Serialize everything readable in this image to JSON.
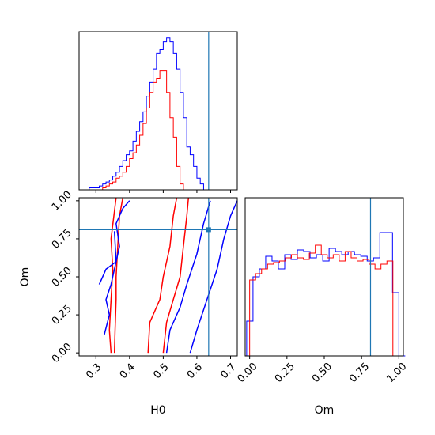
{
  "chart_data": {
    "type": "corner",
    "parameters": [
      "H0",
      "Om"
    ],
    "truth": {
      "H0": 0.635,
      "Om": 0.81
    },
    "colors": {
      "series_a": "#0000ff",
      "series_b": "#ff0000",
      "truth": "#1f77b4"
    },
    "panels": [
      {
        "id": "h0-marginal",
        "type": "histogram",
        "xlim": [
          0.25,
          0.72
        ],
        "xticks": [
          0.3,
          0.4,
          0.5,
          0.6,
          0.7
        ],
        "show_tick_labels": false,
        "series": [
          {
            "color": "#0000ff",
            "bin_edges_start": 0.28,
            "bin_width": 0.01,
            "heights": [
              1,
              1,
              1,
              2,
              3,
              4,
              5,
              7,
              9,
              12,
              15,
              18,
              20,
              25,
              30,
              35,
              40,
              48,
              55,
              62,
              70,
              72,
              76,
              78,
              76,
              70,
              62,
              50,
              37,
              22,
              18,
              12,
              6,
              3,
              0
            ]
          },
          {
            "color": "#ff0000",
            "bin_edges_start": 0.32,
            "bin_width": 0.01,
            "heights": [
              1,
              2,
              3,
              4,
              6,
              7,
              9,
              12,
              16,
              19,
              23,
              28,
              34,
              42,
              50,
              55,
              57,
              61,
              61,
              50,
              37,
              27,
              12,
              3,
              0
            ]
          }
        ]
      },
      {
        "id": "h0-om-contour",
        "type": "contour",
        "xlim": [
          0.25,
          0.72
        ],
        "ylim": [
          -0.02,
          1.02
        ],
        "xticks": [
          0.3,
          0.4,
          0.5,
          0.6,
          0.7
        ],
        "xtick_labels": [
          "0.3",
          "0.4",
          "0.5",
          "0.6",
          "0.7"
        ],
        "yticks": [
          0.0,
          0.25,
          0.5,
          0.75,
          1.0
        ],
        "ytick_labels": [
          "0.00",
          "0.25",
          "0.50",
          "0.75",
          "1.00"
        ],
        "xlabel": "H0",
        "ylabel": "Om",
        "series": [
          {
            "color": "#ff0000",
            "contours": [
              [
                [
                  0.355,
                  0.0
                ],
                [
                  0.357,
                  0.15
                ],
                [
                  0.36,
                  0.35
                ],
                [
                  0.36,
                  0.5
                ],
                [
                  0.365,
                  0.7
                ],
                [
                  0.37,
                  0.9
                ],
                [
                  0.38,
                  1.02
                ]
              ],
              [
                [
                  0.455,
                  0.0
                ],
                [
                  0.46,
                  0.2
                ],
                [
                  0.49,
                  0.35
                ],
                [
                  0.5,
                  0.5
                ],
                [
                  0.52,
                  0.7
                ],
                [
                  0.53,
                  0.9
                ],
                [
                  0.54,
                  1.02
                ]
              ],
              [
                [
                  0.345,
                  0.0
                ],
                [
                  0.34,
                  0.15
                ],
                [
                  0.345,
                  0.35
                ],
                [
                  0.35,
                  0.55
                ],
                [
                  0.345,
                  0.75
                ],
                [
                  0.36,
                  1.02
                ]
              ],
              [
                [
                  0.5,
                  0.0
                ],
                [
                  0.51,
                  0.2
                ],
                [
                  0.53,
                  0.35
                ],
                [
                  0.55,
                  0.5
                ],
                [
                  0.56,
                  0.7
                ],
                [
                  0.57,
                  0.9
                ],
                [
                  0.575,
                  1.02
                ]
              ]
            ]
          },
          {
            "color": "#0000ff",
            "contours": [
              [
                [
                  0.31,
                  0.45
                ],
                [
                  0.33,
                  0.55
                ],
                [
                  0.36,
                  0.6
                ],
                [
                  0.37,
                  0.7
                ],
                [
                  0.36,
                  0.85
                ],
                [
                  0.38,
                  0.95
                ],
                [
                  0.4,
                  1.0
                ]
              ],
              [
                [
                  0.325,
                  0.12
                ],
                [
                  0.34,
                  0.25
                ],
                [
                  0.33,
                  0.35
                ],
                [
                  0.345,
                  0.45
                ],
                [
                  0.36,
                  0.6
                ],
                [
                  0.355,
                  0.8
                ]
              ],
              [
                [
                  0.51,
                  0.0
                ],
                [
                  0.52,
                  0.15
                ],
                [
                  0.55,
                  0.3
                ],
                [
                  0.57,
                  0.45
                ],
                [
                  0.6,
                  0.65
                ],
                [
                  0.62,
                  0.85
                ],
                [
                  0.64,
                  1.0
                ]
              ],
              [
                [
                  0.58,
                  0.0
                ],
                [
                  0.6,
                  0.15
                ],
                [
                  0.63,
                  0.35
                ],
                [
                  0.66,
                  0.55
                ],
                [
                  0.68,
                  0.75
                ],
                [
                  0.7,
                  0.9
                ],
                [
                  0.72,
                  1.0
                ]
              ]
            ]
          }
        ]
      },
      {
        "id": "om-marginal",
        "type": "histogram",
        "xlim": [
          -0.03,
          1.03
        ],
        "xticks": [
          0.0,
          0.25,
          0.5,
          0.75,
          1.0
        ],
        "xtick_labels": [
          "0.00",
          "0.25",
          "0.50",
          "0.75",
          "1.00"
        ],
        "xlabel": "Om",
        "ymax": 100,
        "series": [
          {
            "color": "#0000ff",
            "bin_edges_start": -0.02,
            "bin_width": 0.0425,
            "heights": [
              22,
              50,
              55,
              63,
              60,
              55,
              64,
              61,
              67,
              66,
              62,
              64,
              60,
              68,
              66,
              64,
              66,
              64,
              63,
              60,
              62,
              78,
              78,
              40,
              0
            ]
          },
          {
            "color": "#ff0000",
            "bin_edges_start": 0.0,
            "bin_width": 0.04,
            "heights": [
              48,
              52,
              55,
              58,
              59,
              60,
              62,
              64,
              62,
              61,
              65,
              70,
              64,
              62,
              64,
              60,
              66,
              62,
              60,
              61,
              58,
              55,
              58,
              60,
              0
            ]
          }
        ]
      }
    ]
  }
}
